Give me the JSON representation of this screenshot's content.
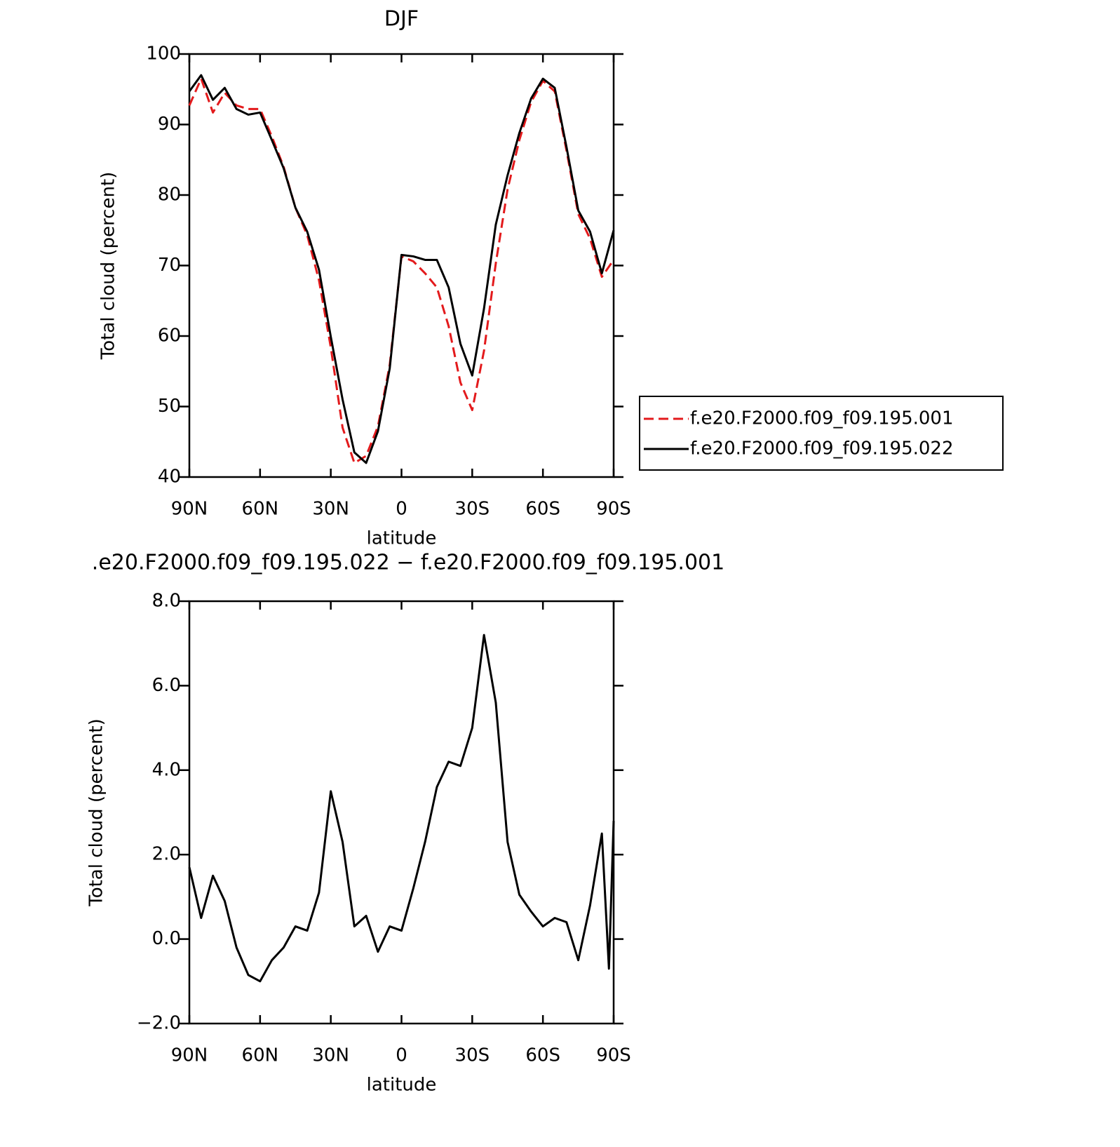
{
  "chart_data": [
    {
      "type": "line",
      "title": "DJF",
      "xlabel": "latitude",
      "ylabel": "Total cloud (percent)",
      "x": [
        90,
        85,
        80,
        75,
        70,
        65,
        60,
        55,
        50,
        45,
        40,
        35,
        30,
        25,
        20,
        15,
        10,
        5,
        0,
        -5,
        -10,
        -15,
        -20,
        -25,
        -30,
        -35,
        -40,
        -45,
        -50,
        -55,
        -60,
        -65,
        -70,
        -75,
        -80,
        -85,
        -90
      ],
      "xlim": [
        90,
        -90
      ],
      "xticks": [
        {
          "value": 90,
          "label": "90N"
        },
        {
          "value": 60,
          "label": "60N"
        },
        {
          "value": 30,
          "label": "30N"
        },
        0,
        {
          "value": -30,
          "label": "30S"
        },
        {
          "value": -60,
          "label": "60S"
        },
        {
          "value": -90,
          "label": "90S"
        }
      ],
      "ylim": [
        40,
        100
      ],
      "yticks": [
        40,
        50,
        60,
        70,
        80,
        90,
        100
      ],
      "legend": "right",
      "series": [
        {
          "name": "f.e20.F2000.f09_f09.195.001",
          "color": "#e31a1c",
          "dash": true,
          "values": [
            92.7,
            96.5,
            91.7,
            94.5,
            92.7,
            92.2,
            92.2,
            88.3,
            84,
            78.2,
            74.3,
            67.9,
            58.4,
            47,
            42,
            43,
            47.2,
            55.9,
            71.3,
            70.6,
            68.9,
            66.9,
            61.4,
            53.4,
            49.5,
            57.9,
            70.3,
            80.8,
            87.8,
            93.2,
            96.2,
            94.7,
            86.3,
            77.3,
            73.8,
            68.4,
            70.8
          ]
        },
        {
          "name": "f.e20.F2000.f09_f09.195.022",
          "color": "#000000",
          "dash": false,
          "values": [
            94.7,
            97,
            93.5,
            95.2,
            92.2,
            91.4,
            91.7,
            87.8,
            83.8,
            78.2,
            74.8,
            69.4,
            59.9,
            51,
            43.5,
            42,
            46.5,
            55.4,
            71.5,
            71.3,
            70.8,
            70.8,
            66.9,
            58.9,
            54.4,
            63.9,
            75.8,
            82.8,
            88.8,
            93.7,
            96.5,
            95.2,
            86.8,
            77.8,
            74.8,
            68.9,
            75
          ]
        }
      ]
    },
    {
      "type": "line",
      "title": ".e20.F2000.f09_f09.195.022 − f.e20.F2000.f09_f09.195.001",
      "xlabel": "latitude",
      "ylabel": "Total cloud (percent)",
      "x": [
        90,
        85,
        80,
        75,
        70,
        65,
        60,
        55,
        50,
        45,
        40,
        35,
        30,
        25,
        20,
        15,
        10,
        5,
        0,
        -5,
        -10,
        -15,
        -20,
        -25,
        -30,
        -35,
        -40,
        -45,
        -50,
        -55,
        -60,
        -65,
        -70,
        -75,
        -80,
        -85,
        -88,
        -90
      ],
      "xlim": [
        90,
        -90
      ],
      "xticks": [
        {
          "value": 90,
          "label": "90N"
        },
        {
          "value": 60,
          "label": "60N"
        },
        {
          "value": 30,
          "label": "30N"
        },
        0,
        {
          "value": -30,
          "label": "30S"
        },
        {
          "value": -60,
          "label": "60S"
        },
        {
          "value": -90,
          "label": "90S"
        }
      ],
      "ylim": [
        -2,
        8
      ],
      "yticks": [
        {
          "value": -2,
          "label": "−2.0"
        },
        {
          "value": 0,
          "label": "0.0"
        },
        {
          "value": 2,
          "label": "2.0"
        },
        {
          "value": 4,
          "label": "4.0"
        },
        {
          "value": 6,
          "label": "6.0"
        },
        {
          "value": 8,
          "label": "8.0"
        }
      ],
      "series": [
        {
          "color": "#000000",
          "dash": false,
          "values": [
            1.7,
            0.5,
            1.5,
            0.9,
            -0.2,
            -0.85,
            -1.0,
            -0.5,
            -0.2,
            0.3,
            0.2,
            1.1,
            3.5,
            2.3,
            0.3,
            0.55,
            -0.3,
            0.3,
            0.2,
            1.2,
            2.3,
            3.6,
            4.2,
            4.1,
            5.0,
            7.2,
            5.6,
            2.3,
            1.05,
            0.65,
            0.3,
            0.5,
            0.4,
            -0.5,
            0.8,
            2.5,
            -0.7,
            2.8
          ]
        }
      ]
    }
  ]
}
